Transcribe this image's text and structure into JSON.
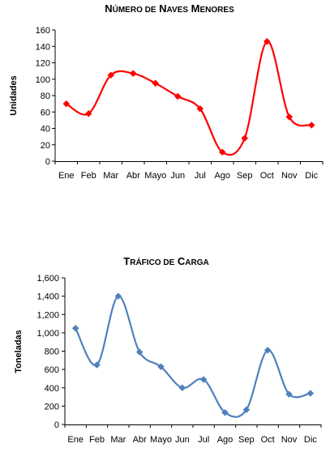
{
  "chart_data": [
    {
      "type": "line",
      "title_initial_1": "N",
      "title_rest_1": "ÚMERO DE",
      "title_initial_2": "N",
      "title_rest_2": "AVES",
      "title_initial_3": "M",
      "title_rest_3": "ENORES",
      "ylabel": "Unidades",
      "xlabel": "",
      "categories": [
        "Ene",
        "Feb",
        "Mar",
        "Abr",
        "Mayo",
        "Jun",
        "Jul",
        "Ago",
        "Sep",
        "Oct",
        "Nov",
        "Dic"
      ],
      "series": [
        {
          "values": [
            70,
            58,
            105,
            107,
            95,
            79,
            64,
            11,
            28,
            146,
            54,
            44
          ]
        }
      ],
      "ylim": [
        0,
        160
      ],
      "yticks": [
        "0",
        "20",
        "40",
        "60",
        "80",
        "100",
        "120",
        "140",
        "160"
      ],
      "grid": false,
      "smooth": true,
      "marker": "diamond",
      "line_color": "#ff0000",
      "marker_color": "#ff0000"
    },
    {
      "type": "line",
      "title_initial_1": "T",
      "title_rest_1": "RÁFICO DE",
      "title_initial_2": "C",
      "title_rest_2": "ARGA",
      "ylabel": "Toneladas",
      "xlabel": "",
      "categories": [
        "Ene",
        "Feb",
        "Mar",
        "Abr",
        "Mayo",
        "Jun",
        "Jul",
        "Ago",
        "Sep",
        "Oct",
        "Nov",
        "Dic"
      ],
      "series": [
        {
          "values": [
            1050,
            650,
            1400,
            790,
            630,
            400,
            490,
            130,
            160,
            810,
            330,
            340
          ]
        }
      ],
      "ylim": [
        0,
        1600
      ],
      "yticks": [
        "0",
        "200",
        "400",
        "600",
        "800",
        "1,000",
        "1,200",
        "1,400",
        "1,600"
      ],
      "grid": false,
      "smooth": true,
      "marker": "diamond",
      "line_color": "#4f81bd",
      "marker_color": "#4f81bd"
    }
  ]
}
